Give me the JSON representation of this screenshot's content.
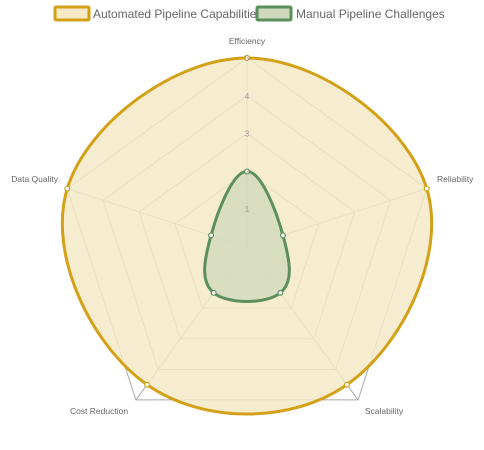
{
  "chart_data": {
    "type": "radar",
    "axes": [
      "Efficiency",
      "Reliability",
      "Scalability",
      "Cost Reduction",
      "Data Quality"
    ],
    "rmin": 0,
    "rmax": 5,
    "ticks": [
      "1",
      "2",
      "3",
      "4",
      "5"
    ],
    "series": [
      {
        "name": "Automated Pipeline Capabilities",
        "values": [
          5,
          5,
          4.5,
          4.5,
          5
        ],
        "stroke": "#d4a017",
        "fill": "#f5e9c7"
      },
      {
        "name": "Manual Pipeline Challenges",
        "values": [
          2,
          1,
          1.5,
          1.5,
          1
        ],
        "stroke": "#5b8f5b",
        "fill": "#cfd9bb"
      }
    ],
    "grid_color": "#a8a8a8",
    "legend_position": "top"
  }
}
